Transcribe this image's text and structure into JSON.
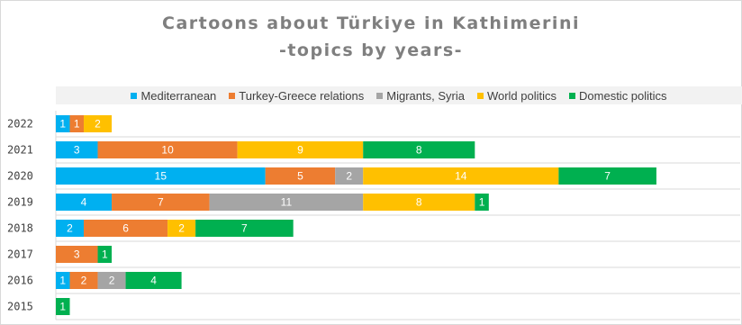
{
  "chart_data": {
    "type": "bar",
    "orientation": "horizontal",
    "stacked": true,
    "title": "Cartoons about Türkiye in Kathimerini",
    "subtitle": "-topics by years-",
    "categories": [
      "2022",
      "2021",
      "2020",
      "2019",
      "2018",
      "2017",
      "2016",
      "2015"
    ],
    "series": [
      {
        "name": "Mediterranean",
        "color": "#00b0f0",
        "values": [
          1,
          3,
          15,
          4,
          2,
          0,
          1,
          0
        ]
      },
      {
        "name": "Turkey-Greece relations",
        "color": "#ed7d31",
        "values": [
          1,
          10,
          5,
          7,
          6,
          3,
          2,
          0
        ]
      },
      {
        "name": "Migrants, Syria",
        "color": "#a5a5a5",
        "values": [
          0,
          0,
          2,
          11,
          0,
          0,
          2,
          0
        ]
      },
      {
        "name": "World politics",
        "color": "#ffc000",
        "values": [
          2,
          9,
          14,
          8,
          2,
          0,
          0,
          0
        ]
      },
      {
        "name": "Domestic politics",
        "color": "#00b050",
        "values": [
          0,
          8,
          7,
          1,
          7,
          1,
          4,
          1
        ]
      }
    ],
    "legend_position": "top",
    "grid": true,
    "xlim": [
      0,
      49
    ]
  }
}
